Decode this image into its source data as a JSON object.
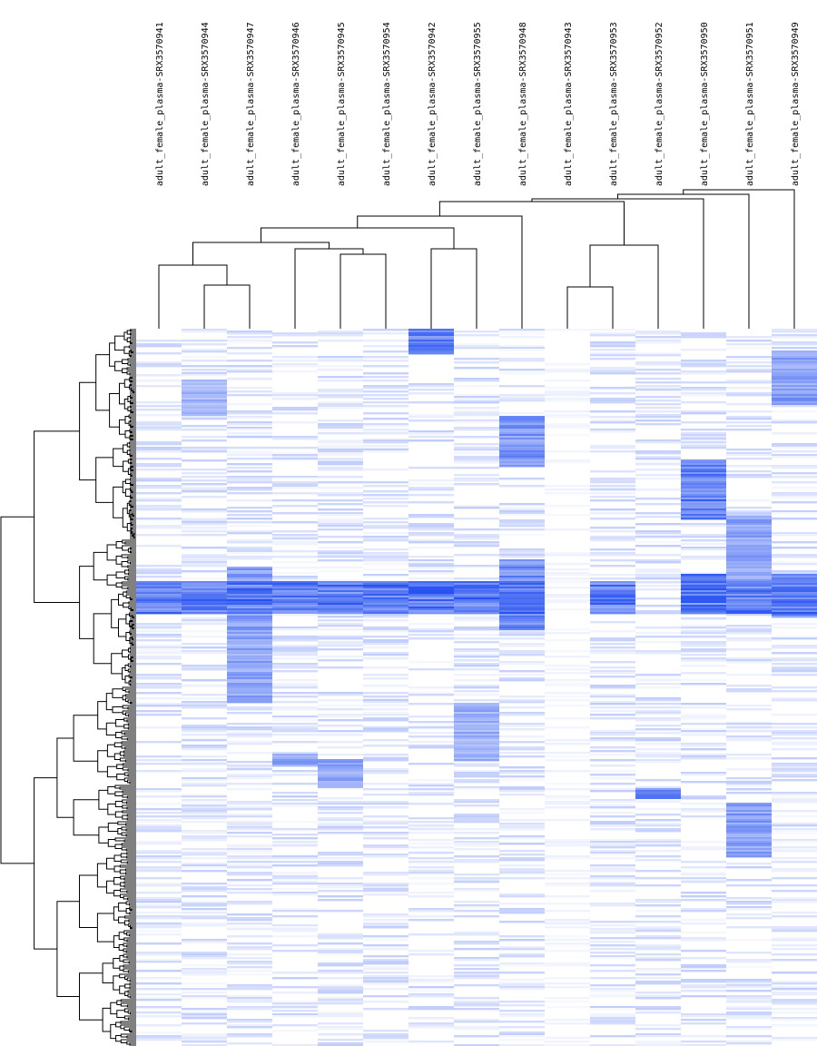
{
  "chart_data": {
    "type": "heatmap",
    "title": "",
    "xlabel": "",
    "ylabel": "",
    "columns": [
      "adult_female_plasma-SRX3570941",
      "adult_female_plasma-SRX3570944",
      "adult_female_plasma-SRX3570947",
      "adult_female_plasma-SRX3570946",
      "adult_female_plasma-SRX3570945",
      "adult_female_plasma-SRX3570954",
      "adult_female_plasma-SRX3570942",
      "adult_female_plasma-SRX3570955",
      "adult_female_plasma-SRX3570948",
      "adult_female_plasma-SRX3570943",
      "adult_female_plasma-SRX3570953",
      "adult_female_plasma-SRX3570952",
      "adult_female_plasma-SRX3570950",
      "adult_female_plasma-SRX3570951",
      "adult_female_plasma-SRX3570949"
    ],
    "row_count": 395,
    "value_range": [
      0,
      1
    ],
    "low_color": "#ffffff",
    "high_color": "#0033ee",
    "column_dendrogram": true,
    "row_dendrogram": true,
    "legend": "none",
    "column_blocks": [
      {
        "column": 14,
        "from": 0.03,
        "to": 0.105,
        "level": 0.6
      },
      {
        "column": 6,
        "from": 0.0,
        "to": 0.035,
        "level": 0.75
      },
      {
        "column": 1,
        "from": 0.07,
        "to": 0.12,
        "level": 0.45
      },
      {
        "column": 8,
        "from": 0.12,
        "to": 0.19,
        "level": 0.65
      },
      {
        "column": 12,
        "from": 0.18,
        "to": 0.265,
        "level": 0.8
      },
      {
        "column": 13,
        "from": 0.26,
        "to": 0.35,
        "level": 0.55
      },
      {
        "column": 2,
        "from": 0.33,
        "to": 0.42,
        "level": 0.6
      },
      {
        "column": 12,
        "from": 0.34,
        "to": 0.38,
        "level": 0.85
      },
      {
        "column": 8,
        "from": 0.32,
        "to": 0.42,
        "level": 0.7
      },
      {
        "column": 14,
        "from": 0.34,
        "to": 0.4,
        "level": 0.7
      },
      {
        "column": 2,
        "from": 0.42,
        "to": 0.52,
        "level": 0.55
      },
      {
        "column": 7,
        "from": 0.52,
        "to": 0.6,
        "level": 0.5
      },
      {
        "column": 4,
        "from": 0.6,
        "to": 0.64,
        "level": 0.55
      },
      {
        "column": 3,
        "from": 0.59,
        "to": 0.61,
        "level": 0.55
      },
      {
        "column": 11,
        "from": 0.64,
        "to": 0.655,
        "level": 0.7
      },
      {
        "column": 13,
        "from": 0.66,
        "to": 0.735,
        "level": 0.6
      },
      {
        "column": 14,
        "from": 0.0,
        "to": 0.0,
        "level": 0.0
      }
    ],
    "dense_band": {
      "from": 0.35,
      "to": 0.395,
      "level": 0.85
    }
  }
}
